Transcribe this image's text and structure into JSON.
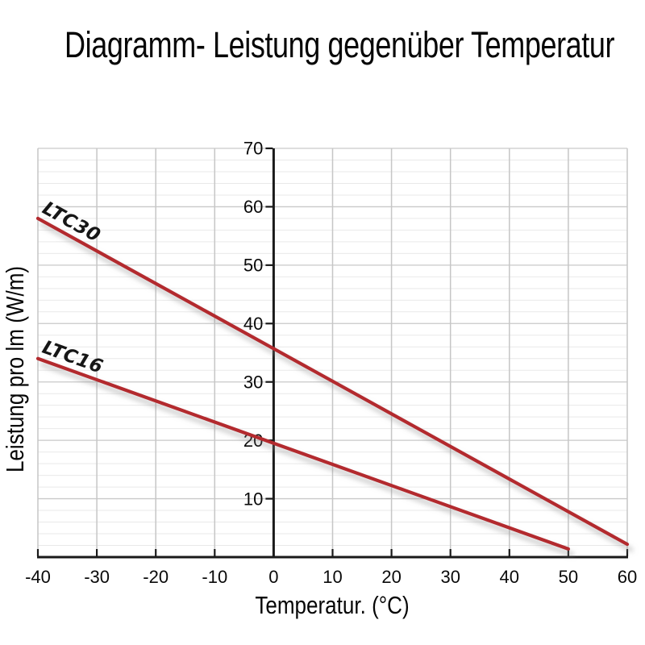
{
  "chart_data": {
    "type": "line",
    "title": "Diagramm- Leistung gegenüber Temperatur",
    "xlabel": "Temperatur. (°C)",
    "ylabel": "Leistung pro lm (W/m)",
    "xlim": [
      -40,
      60
    ],
    "ylim": [
      0,
      70
    ],
    "x_ticks": [
      -40,
      -30,
      -20,
      -10,
      0,
      10,
      20,
      30,
      40,
      50,
      60
    ],
    "y_ticks": [
      10,
      20,
      30,
      40,
      50,
      60,
      70
    ],
    "y_minor_step": 2,
    "grid": true,
    "legend_position": "inline-labels-at-line-start",
    "line_color": "#b3292f",
    "axis_color": "#1a1a1a",
    "series": [
      {
        "name": "LTC30",
        "points": [
          [
            -40,
            58
          ],
          [
            0,
            35.7
          ],
          [
            60,
            2.2
          ]
        ]
      },
      {
        "name": "LTC16",
        "points": [
          [
            -40,
            34
          ],
          [
            0,
            19.5
          ],
          [
            50,
            1.4
          ]
        ]
      }
    ]
  }
}
